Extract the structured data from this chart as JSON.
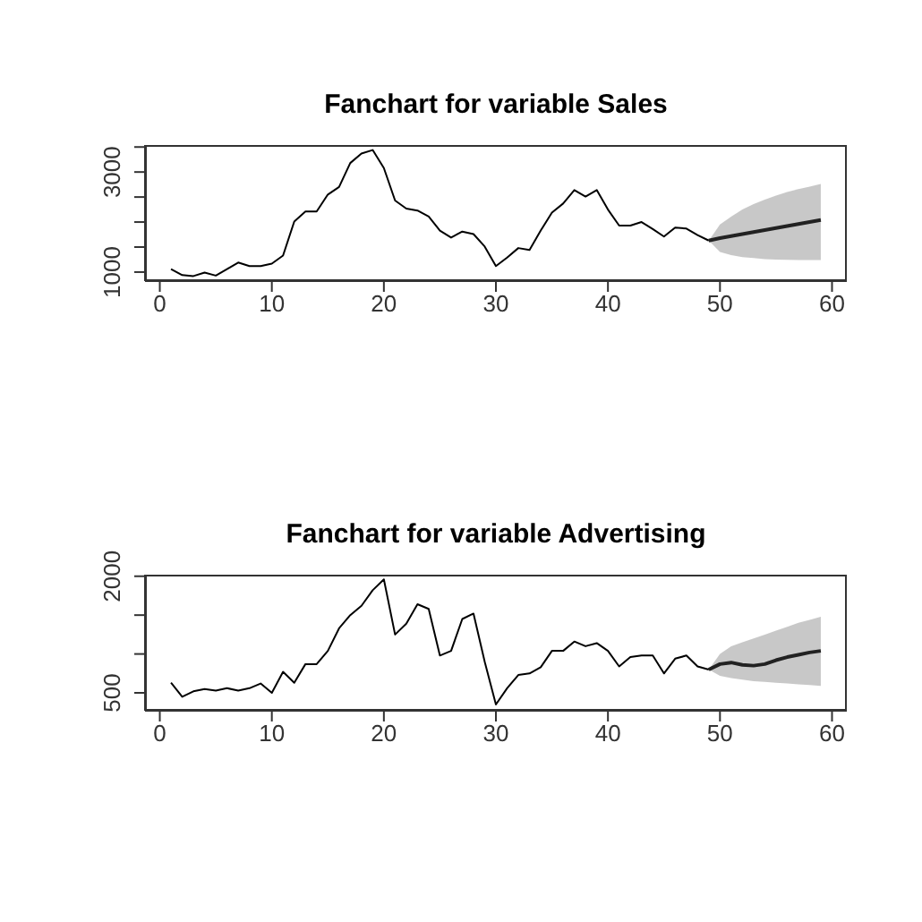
{
  "chart_data": [
    {
      "type": "line",
      "title": "Fanchart for variable Sales",
      "xlim": [
        -1.32,
        61.32
      ],
      "xticks": [
        0,
        10,
        20,
        30,
        40,
        50,
        60
      ],
      "ylim": [
        820,
        3540
      ],
      "yticks": [
        1000,
        {
          "value": 1500,
          "label": null
        },
        {
          "value": 2000,
          "label": null
        },
        {
          "value": 2500,
          "label": null
        },
        3000,
        {
          "value": 3500,
          "label": null
        }
      ],
      "series": [
        {
          "color": "#000000",
          "x": [
            1,
            2,
            3,
            4,
            5,
            6,
            7,
            8,
            9,
            10,
            11,
            12,
            13,
            14,
            15,
            16,
            17,
            18,
            19,
            20,
            21,
            22,
            23,
            24,
            25,
            26,
            27,
            28,
            29,
            30,
            31,
            32,
            33,
            34,
            35,
            36,
            37,
            38,
            39,
            40,
            41,
            42,
            43,
            44,
            45,
            46,
            47,
            48,
            49
          ],
          "values": [
            1060,
            940,
            920,
            990,
            930,
            1060,
            1190,
            1120,
            1120,
            1170,
            1330,
            2010,
            2210,
            2210,
            2550,
            2700,
            3180,
            3370,
            3440,
            3080,
            2430,
            2270,
            2230,
            2110,
            1830,
            1690,
            1810,
            1760,
            1510,
            1120,
            1290,
            1480,
            1440,
            1830,
            2190,
            2370,
            2640,
            2510,
            2640,
            2250,
            1930,
            1930,
            2000,
            1860,
            1710,
            1890,
            1870,
            1740,
            1630
          ]
        },
        {
          "color": "#222222",
          "x": [
            49,
            50,
            51,
            52,
            53,
            54,
            55,
            56,
            57,
            58,
            59
          ],
          "values": [
            1630,
            1680,
            1720,
            1760,
            1800,
            1840,
            1880,
            1920,
            1960,
            2000,
            2040
          ],
          "lower": [
            1630,
            1400,
            1340,
            1300,
            1280,
            1260,
            1250,
            1245,
            1240,
            1240,
            1240
          ],
          "upper": [
            1630,
            1950,
            2110,
            2250,
            2360,
            2450,
            2530,
            2600,
            2660,
            2710,
            2760
          ]
        }
      ]
    },
    {
      "type": "line",
      "title": "Fanchart for variable Advertising",
      "xlim": [
        -1.32,
        61.32
      ],
      "xticks": [
        0,
        10,
        20,
        30,
        40,
        50,
        60
      ],
      "ylim": [
        270,
        2020
      ],
      "yticks": [
        500,
        {
          "value": 1000,
          "label": null
        },
        {
          "value": 1500,
          "label": null
        },
        2000
      ],
      "series": [
        {
          "color": "#000000",
          "x": [
            1,
            2,
            3,
            4,
            5,
            6,
            7,
            8,
            9,
            10,
            11,
            12,
            13,
            14,
            15,
            16,
            17,
            18,
            19,
            20,
            21,
            22,
            23,
            24,
            25,
            26,
            27,
            28,
            29,
            30,
            31,
            32,
            33,
            34,
            35,
            36,
            37,
            38,
            39,
            40,
            41,
            42,
            43,
            44,
            45,
            46,
            47,
            48,
            49
          ],
          "values": [
            630,
            450,
            520,
            550,
            530,
            560,
            530,
            560,
            620,
            500,
            770,
            630,
            870,
            870,
            1040,
            1330,
            1500,
            1620,
            1820,
            1960,
            1250,
            1390,
            1640,
            1580,
            980,
            1040,
            1450,
            1520,
            900,
            350,
            560,
            730,
            750,
            830,
            1040,
            1040,
            1160,
            1100,
            1140,
            1040,
            840,
            960,
            980,
            980,
            750,
            940,
            980,
            840,
            800
          ]
        },
        {
          "color": "#222222",
          "x": [
            49,
            50,
            51,
            52,
            53,
            54,
            55,
            56,
            57,
            58,
            59
          ],
          "values": [
            800,
            870,
            890,
            860,
            850,
            870,
            920,
            960,
            990,
            1020,
            1040
          ],
          "lower": [
            800,
            720,
            690,
            670,
            650,
            640,
            630,
            620,
            610,
            600,
            590
          ],
          "upper": [
            800,
            1000,
            1100,
            1150,
            1200,
            1250,
            1300,
            1350,
            1400,
            1440,
            1480
          ]
        }
      ]
    }
  ]
}
